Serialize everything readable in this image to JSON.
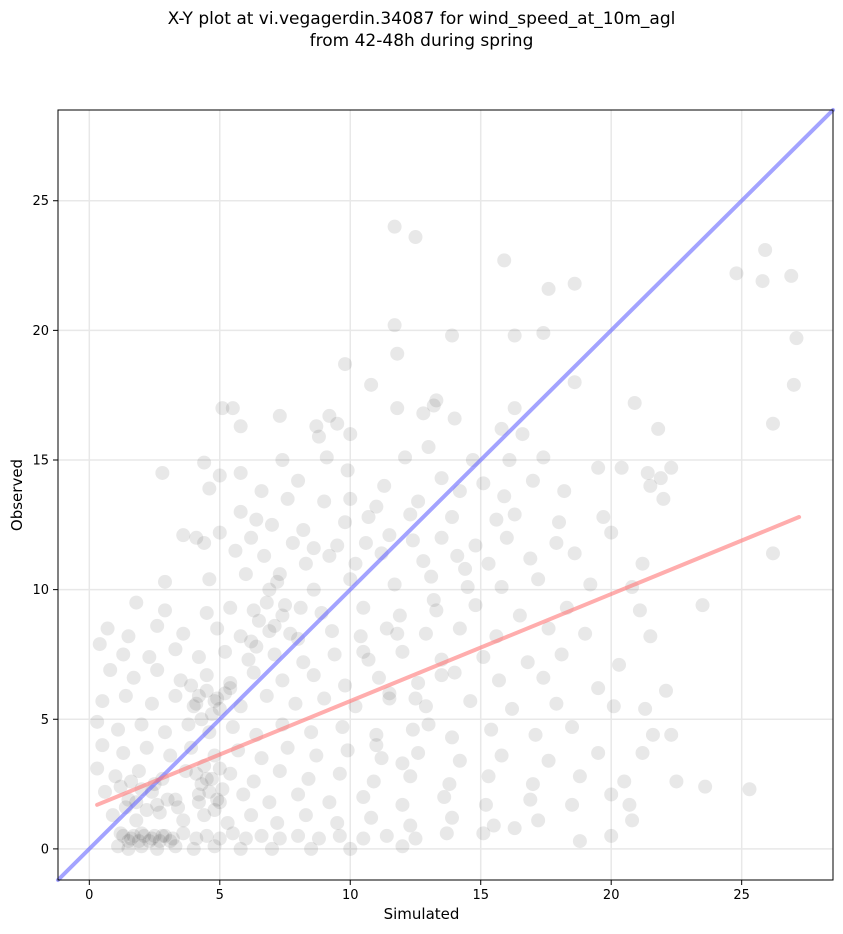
{
  "chart_data": {
    "type": "scatter",
    "title_line1": "X-Y plot at vi.vegagerdin.34087 for wind_speed_at_10m_agl",
    "title_line2": "from 42-48h during spring",
    "xlabel": "Simulated",
    "ylabel": "Observed",
    "xlim": [
      -1.2,
      28.5
    ],
    "ylim": [
      -1.2,
      28.5
    ],
    "xticks": [
      0,
      5,
      10,
      15,
      20,
      25
    ],
    "yticks": [
      0,
      5,
      10,
      15,
      20,
      25
    ],
    "grid": true,
    "point_color": "#000000",
    "identity_line": {
      "color": "#6666ff",
      "from": [
        -1.2,
        -1.2
      ],
      "to": [
        28.5,
        28.5
      ]
    },
    "regression_line": {
      "color": "#ff7777",
      "from": [
        0.3,
        1.7
      ],
      "to": [
        27.2,
        12.8
      ]
    },
    "points": [
      [
        11.7,
        24.0
      ],
      [
        12.5,
        23.6
      ],
      [
        15.9,
        22.7
      ],
      [
        24.8,
        22.2
      ],
      [
        25.9,
        23.1
      ],
      [
        25.8,
        21.9
      ],
      [
        26.9,
        22.1
      ],
      [
        17.6,
        21.6
      ],
      [
        18.6,
        21.8
      ],
      [
        11.7,
        20.2
      ],
      [
        11.8,
        19.1
      ],
      [
        13.9,
        19.8
      ],
      [
        16.3,
        19.8
      ],
      [
        17.4,
        19.9
      ],
      [
        27.1,
        19.7
      ],
      [
        9.8,
        18.7
      ],
      [
        10.8,
        17.9
      ],
      [
        27.0,
        17.9
      ],
      [
        18.6,
        18.0
      ],
      [
        5.1,
        17.0
      ],
      [
        5.5,
        17.0
      ],
      [
        7.3,
        16.7
      ],
      [
        9.2,
        16.7
      ],
      [
        11.8,
        17.0
      ],
      [
        13.2,
        17.1
      ],
      [
        13.3,
        17.3
      ],
      [
        16.3,
        17.0
      ],
      [
        20.9,
        17.2
      ],
      [
        26.2,
        16.4
      ],
      [
        8.7,
        16.3
      ],
      [
        9.5,
        16.4
      ],
      [
        10.0,
        16.0
      ],
      [
        8.8,
        15.9
      ],
      [
        5.8,
        16.3
      ],
      [
        12.8,
        16.8
      ],
      [
        14.0,
        16.6
      ],
      [
        15.8,
        16.2
      ],
      [
        16.6,
        16.0
      ],
      [
        21.8,
        16.2
      ],
      [
        7.4,
        15.0
      ],
      [
        9.1,
        15.1
      ],
      [
        12.1,
        15.1
      ],
      [
        13.0,
        15.5
      ],
      [
        14.7,
        15.0
      ],
      [
        16.1,
        15.0
      ],
      [
        17.4,
        15.1
      ],
      [
        19.5,
        14.7
      ],
      [
        20.4,
        14.7
      ],
      [
        21.4,
        14.5
      ],
      [
        22.3,
        14.7
      ],
      [
        2.8,
        14.5
      ],
      [
        4.4,
        14.9
      ],
      [
        5.0,
        14.4
      ],
      [
        5.8,
        14.5
      ],
      [
        8.0,
        14.2
      ],
      [
        9.9,
        14.6
      ],
      [
        11.3,
        14.0
      ],
      [
        13.5,
        14.3
      ],
      [
        15.1,
        14.1
      ],
      [
        17.0,
        14.2
      ],
      [
        21.9,
        14.3
      ],
      [
        4.6,
        13.9
      ],
      [
        6.6,
        13.8
      ],
      [
        7.6,
        13.5
      ],
      [
        9.0,
        13.4
      ],
      [
        10.0,
        13.5
      ],
      [
        11.0,
        13.2
      ],
      [
        12.6,
        13.4
      ],
      [
        14.2,
        13.8
      ],
      [
        15.9,
        13.6
      ],
      [
        18.2,
        13.8
      ],
      [
        21.5,
        14.0
      ],
      [
        22.0,
        13.5
      ],
      [
        5.8,
        13.0
      ],
      [
        6.4,
        12.7
      ],
      [
        7.0,
        12.5
      ],
      [
        8.2,
        12.3
      ],
      [
        9.8,
        12.6
      ],
      [
        10.7,
        12.8
      ],
      [
        12.3,
        12.9
      ],
      [
        13.9,
        12.8
      ],
      [
        15.6,
        12.7
      ],
      [
        16.3,
        12.9
      ],
      [
        18.0,
        12.6
      ],
      [
        19.7,
        12.8
      ],
      [
        3.6,
        12.1
      ],
      [
        4.1,
        12.0
      ],
      [
        5.0,
        12.2
      ],
      [
        6.2,
        12.0
      ],
      [
        7.8,
        11.8
      ],
      [
        8.6,
        11.6
      ],
      [
        9.5,
        11.7
      ],
      [
        10.6,
        11.8
      ],
      [
        11.5,
        12.1
      ],
      [
        12.4,
        11.9
      ],
      [
        13.5,
        12.0
      ],
      [
        14.8,
        11.7
      ],
      [
        16.0,
        12.0
      ],
      [
        17.9,
        11.8
      ],
      [
        20.0,
        12.2
      ],
      [
        26.2,
        11.4
      ],
      [
        4.4,
        11.8
      ],
      [
        5.6,
        11.5
      ],
      [
        6.7,
        11.3
      ],
      [
        8.3,
        11.0
      ],
      [
        9.2,
        11.3
      ],
      [
        10.2,
        11.0
      ],
      [
        11.2,
        11.4
      ],
      [
        12.8,
        11.1
      ],
      [
        14.1,
        11.3
      ],
      [
        15.3,
        11.0
      ],
      [
        16.9,
        11.2
      ],
      [
        18.6,
        11.4
      ],
      [
        21.2,
        11.0
      ],
      [
        2.9,
        10.3
      ],
      [
        4.6,
        10.4
      ],
      [
        6.0,
        10.6
      ],
      [
        7.2,
        10.3
      ],
      [
        8.6,
        10.0
      ],
      [
        10.0,
        10.4
      ],
      [
        11.7,
        10.2
      ],
      [
        13.1,
        10.5
      ],
      [
        14.5,
        10.1
      ],
      [
        15.8,
        10.1
      ],
      [
        17.2,
        10.4
      ],
      [
        19.2,
        10.2
      ],
      [
        20.8,
        10.1
      ],
      [
        1.8,
        9.5
      ],
      [
        2.9,
        9.2
      ],
      [
        4.5,
        9.1
      ],
      [
        5.4,
        9.3
      ],
      [
        6.3,
        9.2
      ],
      [
        7.5,
        9.4
      ],
      [
        8.9,
        9.1
      ],
      [
        10.5,
        9.3
      ],
      [
        11.9,
        9.0
      ],
      [
        13.3,
        9.2
      ],
      [
        14.8,
        9.4
      ],
      [
        16.5,
        9.0
      ],
      [
        18.3,
        9.3
      ],
      [
        21.1,
        9.2
      ],
      [
        23.5,
        9.4
      ],
      [
        0.7,
        8.5
      ],
      [
        1.5,
        8.2
      ],
      [
        2.6,
        8.6
      ],
      [
        3.6,
        8.3
      ],
      [
        4.9,
        8.5
      ],
      [
        5.8,
        8.2
      ],
      [
        6.9,
        8.4
      ],
      [
        8.0,
        8.1
      ],
      [
        9.3,
        8.4
      ],
      [
        10.4,
        8.2
      ],
      [
        11.4,
        8.5
      ],
      [
        12.9,
        8.3
      ],
      [
        14.2,
        8.5
      ],
      [
        15.6,
        8.2
      ],
      [
        17.6,
        8.5
      ],
      [
        19.0,
        8.3
      ],
      [
        21.5,
        8.2
      ],
      [
        0.4,
        7.9
      ],
      [
        1.3,
        7.5
      ],
      [
        2.3,
        7.4
      ],
      [
        3.3,
        7.7
      ],
      [
        4.2,
        7.4
      ],
      [
        5.2,
        7.6
      ],
      [
        6.1,
        7.3
      ],
      [
        7.1,
        7.5
      ],
      [
        8.2,
        7.2
      ],
      [
        9.4,
        7.5
      ],
      [
        10.7,
        7.3
      ],
      [
        12.0,
        7.6
      ],
      [
        13.5,
        7.3
      ],
      [
        15.1,
        7.4
      ],
      [
        16.8,
        7.2
      ],
      [
        18.1,
        7.5
      ],
      [
        20.3,
        7.1
      ],
      [
        0.8,
        6.9
      ],
      [
        1.7,
        6.6
      ],
      [
        2.6,
        6.9
      ],
      [
        3.5,
        6.5
      ],
      [
        4.5,
        6.7
      ],
      [
        5.4,
        6.4
      ],
      [
        6.3,
        6.8
      ],
      [
        7.4,
        6.5
      ],
      [
        8.6,
        6.7
      ],
      [
        9.8,
        6.3
      ],
      [
        11.1,
        6.6
      ],
      [
        12.6,
        6.4
      ],
      [
        14.0,
        6.8
      ],
      [
        15.7,
        6.5
      ],
      [
        17.4,
        6.6
      ],
      [
        19.5,
        6.2
      ],
      [
        22.1,
        6.1
      ],
      [
        0.5,
        5.7
      ],
      [
        1.4,
        5.9
      ],
      [
        2.4,
        5.6
      ],
      [
        3.3,
        5.9
      ],
      [
        4.1,
        5.6
      ],
      [
        4.9,
        5.8
      ],
      [
        5.8,
        5.5
      ],
      [
        6.8,
        5.9
      ],
      [
        7.9,
        5.6
      ],
      [
        9.0,
        5.8
      ],
      [
        10.2,
        5.5
      ],
      [
        11.5,
        5.8
      ],
      [
        12.9,
        5.5
      ],
      [
        14.6,
        5.7
      ],
      [
        16.2,
        5.4
      ],
      [
        17.9,
        5.6
      ],
      [
        20.1,
        5.5
      ],
      [
        21.3,
        5.4
      ],
      [
        0.3,
        4.9
      ],
      [
        1.1,
        4.6
      ],
      [
        2.0,
        4.8
      ],
      [
        2.9,
        4.5
      ],
      [
        3.8,
        4.8
      ],
      [
        4.6,
        4.5
      ],
      [
        5.5,
        4.7
      ],
      [
        6.4,
        4.4
      ],
      [
        7.4,
        4.8
      ],
      [
        8.5,
        4.5
      ],
      [
        9.7,
        4.7
      ],
      [
        11.0,
        4.4
      ],
      [
        12.4,
        4.6
      ],
      [
        13.9,
        4.3
      ],
      [
        15.4,
        4.6
      ],
      [
        17.1,
        4.4
      ],
      [
        18.5,
        4.7
      ],
      [
        21.6,
        4.4
      ],
      [
        22.3,
        4.4
      ],
      [
        0.5,
        4.0
      ],
      [
        1.3,
        3.7
      ],
      [
        2.2,
        3.9
      ],
      [
        3.1,
        3.6
      ],
      [
        3.9,
        3.9
      ],
      [
        4.8,
        3.6
      ],
      [
        5.7,
        3.8
      ],
      [
        6.6,
        3.5
      ],
      [
        7.6,
        3.9
      ],
      [
        8.7,
        3.6
      ],
      [
        9.9,
        3.8
      ],
      [
        11.2,
        3.5
      ],
      [
        12.6,
        3.7
      ],
      [
        14.2,
        3.4
      ],
      [
        15.8,
        3.6
      ],
      [
        17.6,
        3.4
      ],
      [
        19.5,
        3.7
      ],
      [
        21.2,
        3.7
      ],
      [
        0.3,
        3.1
      ],
      [
        1.0,
        2.8
      ],
      [
        1.9,
        3.0
      ],
      [
        2.8,
        2.7
      ],
      [
        3.7,
        3.0
      ],
      [
        4.5,
        2.7
      ],
      [
        5.4,
        2.9
      ],
      [
        6.3,
        2.6
      ],
      [
        7.3,
        3.0
      ],
      [
        8.4,
        2.7
      ],
      [
        9.6,
        2.9
      ],
      [
        10.9,
        2.6
      ],
      [
        12.3,
        2.8
      ],
      [
        13.8,
        2.5
      ],
      [
        15.3,
        2.8
      ],
      [
        17.0,
        2.5
      ],
      [
        18.8,
        2.8
      ],
      [
        20.5,
        2.6
      ],
      [
        22.5,
        2.6
      ],
      [
        23.6,
        2.4
      ],
      [
        25.3,
        2.3
      ],
      [
        0.6,
        2.2
      ],
      [
        1.5,
        1.9
      ],
      [
        2.4,
        2.2
      ],
      [
        3.3,
        1.9
      ],
      [
        4.2,
        2.1
      ],
      [
        5.0,
        1.8
      ],
      [
        5.9,
        2.1
      ],
      [
        6.9,
        1.8
      ],
      [
        8.0,
        2.1
      ],
      [
        9.2,
        1.8
      ],
      [
        10.5,
        2.0
      ],
      [
        12.0,
        1.7
      ],
      [
        13.6,
        2.0
      ],
      [
        15.2,
        1.7
      ],
      [
        16.9,
        1.9
      ],
      [
        18.5,
        1.7
      ],
      [
        20.0,
        2.1
      ],
      [
        20.7,
        1.7
      ],
      [
        0.9,
        1.3
      ],
      [
        1.8,
        1.1
      ],
      [
        2.7,
        1.4
      ],
      [
        3.6,
        1.1
      ],
      [
        4.4,
        1.3
      ],
      [
        5.3,
        1.0
      ],
      [
        6.2,
        1.3
      ],
      [
        7.2,
        1.0
      ],
      [
        8.3,
        1.3
      ],
      [
        9.5,
        1.0
      ],
      [
        10.8,
        1.2
      ],
      [
        12.3,
        0.9
      ],
      [
        13.9,
        1.2
      ],
      [
        15.5,
        0.9
      ],
      [
        17.2,
        1.1
      ],
      [
        20.8,
        1.1
      ],
      [
        1.2,
        0.6
      ],
      [
        1.6,
        0.4
      ],
      [
        2.0,
        0.6
      ],
      [
        2.4,
        0.4
      ],
      [
        2.8,
        0.5
      ],
      [
        3.2,
        0.4
      ],
      [
        3.6,
        0.6
      ],
      [
        4.1,
        0.4
      ],
      [
        4.5,
        0.5
      ],
      [
        5.0,
        0.4
      ],
      [
        5.5,
        0.6
      ],
      [
        6.0,
        0.4
      ],
      [
        6.6,
        0.5
      ],
      [
        7.3,
        0.4
      ],
      [
        8.0,
        0.5
      ],
      [
        8.8,
        0.4
      ],
      [
        9.6,
        0.5
      ],
      [
        10.5,
        0.4
      ],
      [
        11.4,
        0.5
      ],
      [
        12.5,
        0.4
      ],
      [
        13.7,
        0.6
      ],
      [
        15.1,
        0.6
      ],
      [
        16.3,
        0.8
      ],
      [
        20.0,
        0.5
      ],
      [
        18.8,
        0.3
      ],
      [
        1.1,
        0.1
      ],
      [
        1.5,
        0.0
      ],
      [
        2.0,
        0.1
      ],
      [
        2.6,
        0.0
      ],
      [
        3.3,
        0.1
      ],
      [
        4.0,
        0.0
      ],
      [
        4.8,
        0.1
      ],
      [
        5.8,
        0.0
      ],
      [
        7.0,
        0.0
      ],
      [
        8.5,
        0.0
      ],
      [
        10.0,
        0.0
      ],
      [
        12.0,
        0.1
      ],
      [
        4.2,
        5.9
      ],
      [
        4.5,
        6.1
      ],
      [
        4.8,
        5.7
      ],
      [
        5.2,
        6.0
      ],
      [
        4.0,
        5.5
      ],
      [
        4.7,
        5.2
      ],
      [
        5.0,
        5.4
      ],
      [
        4.3,
        5.0
      ],
      [
        3.9,
        6.3
      ],
      [
        5.4,
        6.2
      ],
      [
        4.1,
        2.9
      ],
      [
        4.4,
        3.2
      ],
      [
        4.7,
        2.7
      ],
      [
        5.0,
        3.1
      ],
      [
        4.3,
        2.5
      ],
      [
        4.6,
        2.2
      ],
      [
        4.9,
        1.9
      ],
      [
        4.2,
        1.8
      ],
      [
        4.8,
        1.5
      ],
      [
        5.1,
        2.3
      ],
      [
        1.3,
        0.5
      ],
      [
        1.5,
        0.3
      ],
      [
        1.7,
        0.5
      ],
      [
        1.9,
        0.3
      ],
      [
        2.1,
        0.5
      ],
      [
        2.3,
        0.3
      ],
      [
        2.5,
        0.5
      ],
      [
        2.7,
        0.3
      ],
      [
        2.9,
        0.5
      ],
      [
        3.1,
        0.3
      ],
      [
        1.4,
        1.6
      ],
      [
        1.8,
        1.8
      ],
      [
        2.2,
        1.5
      ],
      [
        2.6,
        1.7
      ],
      [
        3.0,
        1.9
      ],
      [
        3.4,
        1.6
      ],
      [
        1.2,
        2.4
      ],
      [
        1.6,
        2.6
      ],
      [
        2.0,
        2.3
      ],
      [
        2.5,
        2.5
      ],
      [
        6.2,
        8.0
      ],
      [
        6.5,
        8.8
      ],
      [
        6.8,
        9.5
      ],
      [
        7.1,
        8.6
      ],
      [
        6.4,
        7.8
      ],
      [
        7.4,
        9.0
      ],
      [
        7.7,
        8.3
      ],
      [
        8.1,
        9.3
      ],
      [
        6.9,
        10.0
      ],
      [
        7.3,
        10.6
      ],
      [
        11.0,
        4.0
      ],
      [
        12.0,
        3.3
      ],
      [
        13.0,
        4.8
      ],
      [
        11.5,
        6.0
      ],
      [
        12.5,
        5.8
      ],
      [
        13.5,
        6.7
      ],
      [
        10.5,
        7.6
      ],
      [
        11.8,
        8.3
      ],
      [
        13.2,
        9.6
      ],
      [
        14.4,
        10.8
      ]
    ]
  }
}
